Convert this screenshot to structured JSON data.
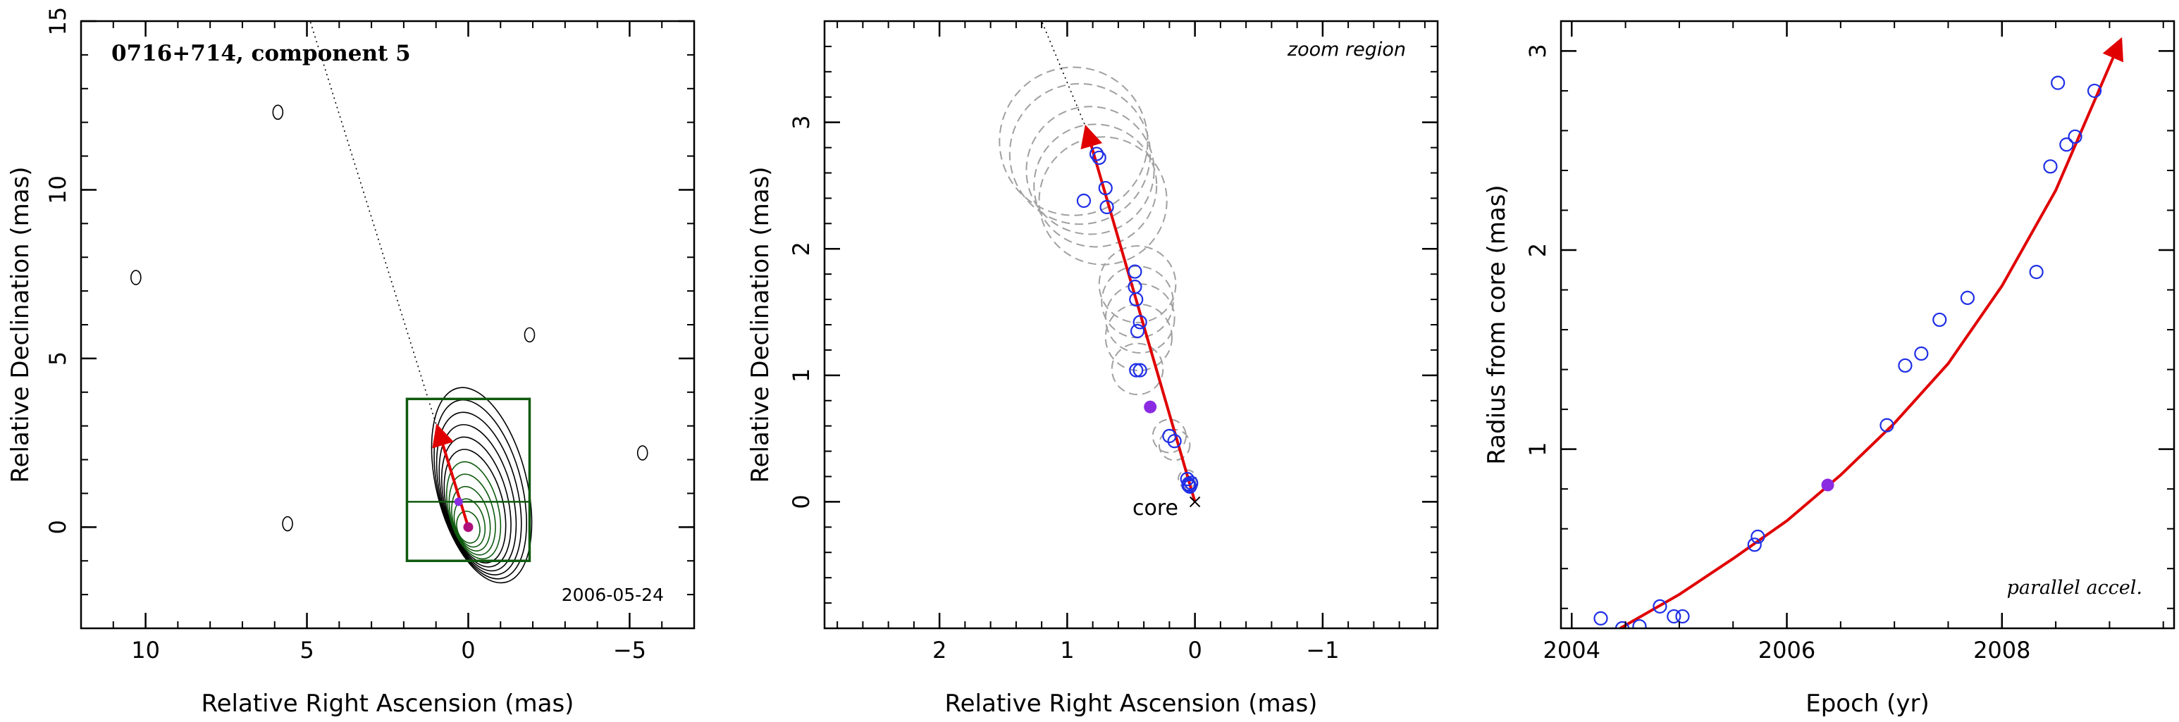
{
  "colors": {
    "axis": "#000000",
    "arrow": "#e00000",
    "open_marker": "#1f2fe6",
    "filled_marker": "#8a2be2",
    "box": "#0e5a0e",
    "circles": "#a0a0a0"
  },
  "chart_data": [
    {
      "type": "scatter",
      "panel": "map",
      "title": "0716+714, component 5",
      "date_label": "2006-05-24",
      "xlabel": "Relative Right Ascension (mas)",
      "ylabel": "Relative Declination (mas)",
      "xlim": [
        12,
        -7
      ],
      "ylim": [
        -3,
        15
      ],
      "xticks": [
        10,
        5,
        0,
        -5
      ],
      "yticks": [
        0,
        5,
        10,
        15
      ],
      "xtick_labels": [
        "10",
        "5",
        "0",
        "−5"
      ],
      "ytick_labels": [
        "0",
        "5",
        "10",
        "15"
      ],
      "zoom_box": {
        "ra": [
          1.9,
          -1.9
        ],
        "dec": [
          -1.0,
          3.8
        ],
        "divider_dec": 0.75
      },
      "velocity_arrow": {
        "from": [
          0,
          0
        ],
        "to": [
          0.95,
          2.95
        ]
      },
      "trajectory_line": {
        "from": [
          0,
          0
        ],
        "to": [
          4.9,
          15.0
        ]
      },
      "component": {
        "ra": 0.3,
        "dec": 0.75
      },
      "isolated_contours": [
        {
          "ra": 5.9,
          "dec": 12.3
        },
        {
          "ra": 10.3,
          "dec": 7.4
        },
        {
          "ra": -1.9,
          "dec": 5.7
        },
        {
          "ra": -5.4,
          "dec": 2.2
        },
        {
          "ra": 5.6,
          "dec": 0.1
        }
      ]
    },
    {
      "type": "scatter",
      "panel": "zoom",
      "annotation": "zoom region",
      "core_label": "core",
      "xlabel": "Relative Right Ascension (mas)",
      "ylabel": "Relative Declination (mas)",
      "xlim": [
        2.9,
        -1.9
      ],
      "ylim": [
        -1.0,
        3.8
      ],
      "xticks": [
        2,
        1,
        0,
        -1
      ],
      "yticks": [
        0,
        1,
        2,
        3
      ],
      "xtick_labels": [
        "2",
        "1",
        "0",
        "−1"
      ],
      "ytick_labels": [
        "0",
        "1",
        "2",
        "3"
      ],
      "velocity_arrow": {
        "from": [
          0,
          0
        ],
        "to": [
          0.85,
          2.95
        ]
      },
      "trajectory_line": {
        "from": [
          0.85,
          2.95
        ],
        "to": [
          1.2,
          3.8
        ]
      },
      "open_points": {
        "x": [
          0.87,
          0.77,
          0.75,
          0.7,
          0.69,
          0.47,
          0.47,
          0.46,
          0.43,
          0.45,
          0.46,
          0.43,
          0.2,
          0.16,
          0.06,
          0.05,
          0.04,
          0.03,
          0.05
        ],
        "y": [
          2.38,
          2.75,
          2.72,
          2.48,
          2.33,
          1.82,
          1.7,
          1.6,
          1.42,
          1.35,
          1.04,
          1.04,
          0.52,
          0.48,
          0.18,
          0.14,
          0.12,
          0.15,
          0.13
        ]
      },
      "filled_point": {
        "x": 0.35,
        "y": 0.75
      },
      "size_circles": [
        {
          "x": 0.95,
          "y": 2.85,
          "r": 0.58
        },
        {
          "x": 0.9,
          "y": 2.75,
          "r": 0.55
        },
        {
          "x": 0.82,
          "y": 2.62,
          "r": 0.5
        },
        {
          "x": 0.78,
          "y": 2.5,
          "r": 0.48
        },
        {
          "x": 0.72,
          "y": 2.38,
          "r": 0.5
        },
        {
          "x": 0.45,
          "y": 1.72,
          "r": 0.3
        },
        {
          "x": 0.45,
          "y": 1.58,
          "r": 0.28
        },
        {
          "x": 0.43,
          "y": 1.45,
          "r": 0.27
        },
        {
          "x": 0.44,
          "y": 1.3,
          "r": 0.26
        },
        {
          "x": 0.45,
          "y": 1.05,
          "r": 0.2
        },
        {
          "x": 0.2,
          "y": 0.52,
          "r": 0.13
        },
        {
          "x": 0.16,
          "y": 0.45,
          "r": 0.12
        },
        {
          "x": 0.06,
          "y": 0.18,
          "r": 0.07
        },
        {
          "x": 0.04,
          "y": 0.14,
          "r": 0.06
        }
      ]
    },
    {
      "type": "scatter",
      "panel": "radius",
      "annotation": "parallel accel.",
      "xlabel": "Epoch (yr)",
      "ylabel": "Radius from core (mas)",
      "xlim": [
        2003.9,
        2009.6
      ],
      "ylim": [
        0.1,
        3.15
      ],
      "xticks": [
        2004,
        2006,
        2008
      ],
      "yticks": [
        1,
        2,
        3
      ],
      "xtick_labels": [
        "2004",
        "2006",
        "2008"
      ],
      "ytick_labels": [
        "1",
        "2",
        "3"
      ],
      "open_points": {
        "x": [
          2004.27,
          2004.47,
          2004.63,
          2004.82,
          2004.95,
          2005.03,
          2005.7,
          2005.73,
          2006.93,
          2007.1,
          2007.25,
          2007.42,
          2007.68,
          2008.32,
          2008.45,
          2008.52,
          2008.6,
          2008.68,
          2008.86
        ],
        "y": [
          0.15,
          0.1,
          0.11,
          0.21,
          0.16,
          0.16,
          0.52,
          0.56,
          1.12,
          1.42,
          1.48,
          1.65,
          1.76,
          1.89,
          2.42,
          2.84,
          2.53,
          2.57,
          2.8
        ]
      },
      "filled_point": {
        "x": 2006.38,
        "y": 0.82
      },
      "fit_curve": {
        "x": [
          2004.45,
          2005.0,
          2005.5,
          2006.0,
          2006.5,
          2007.0,
          2007.5,
          2008.0,
          2008.5,
          2009.1
        ],
        "y": [
          0.1,
          0.27,
          0.45,
          0.64,
          0.87,
          1.13,
          1.43,
          1.82,
          2.3,
          3.05
        ]
      }
    }
  ]
}
